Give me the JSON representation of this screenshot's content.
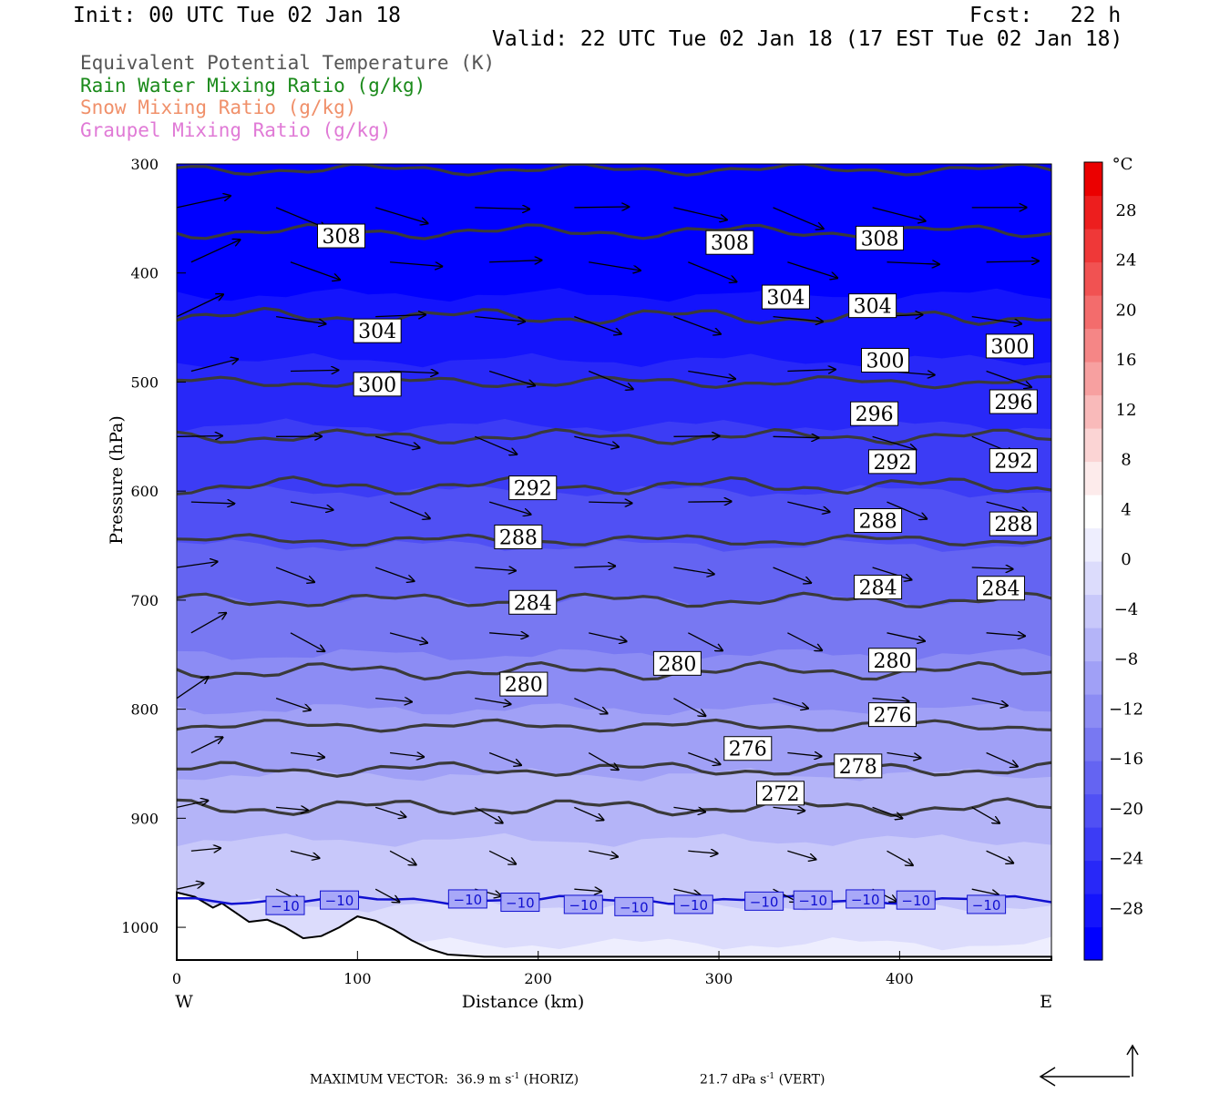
{
  "header": {
    "init": "Init: 00 UTC Tue 02 Jan 18",
    "fcst": "Fcst:   22 h",
    "valid": "Valid: 22 UTC Tue 02 Jan 18 (17 EST Tue 02 Jan 18)",
    "legend": [
      {
        "text": "Equivalent Potential Temperature (K)",
        "color": "#555555"
      },
      {
        "text": "Rain Water Mixing Ratio (g/kg)",
        "color": "#1a8a1a"
      },
      {
        "text": "Snow Mixing Ratio (g/kg)",
        "color": "#f0906a"
      },
      {
        "text": "Graupel Mixing Ratio (g/kg)",
        "color": "#e07ad6"
      }
    ]
  },
  "chart_data": {
    "type": "cross-section",
    "xlabel": "Distance (km)",
    "ylabel": "Pressure (hPa)",
    "xlim": [
      0,
      484
    ],
    "ylim": [
      1030,
      300
    ],
    "x_ticks": [
      "0",
      "100",
      "200",
      "300",
      "400"
    ],
    "y_ticks": [
      "300",
      "400",
      "500",
      "600",
      "700",
      "800",
      "900",
      "1000"
    ],
    "x_end_labels": {
      "left": "W",
      "right": "E"
    },
    "colorbar": {
      "unit": "°C",
      "labels": [
        "28",
        "24",
        "20",
        "16",
        "12",
        "8",
        "4",
        "0",
        "−4",
        "−8",
        "−12",
        "−16",
        "−20",
        "−24",
        "−28"
      ],
      "label_values": [
        28,
        24,
        20,
        16,
        12,
        8,
        4,
        0,
        -4,
        -8,
        -12,
        -16,
        -20,
        -24,
        -28
      ],
      "range": [
        -32,
        32
      ],
      "colors": [
        "#0000ff",
        "#1414fc",
        "#2828f8",
        "#3c3cf5",
        "#5050f4",
        "#6464f2",
        "#7878f2",
        "#8c8cf4",
        "#a0a0f6",
        "#b4b4f8",
        "#c8c8fa",
        "#dcdcfc",
        "#eeeefe",
        "#ffffff",
        "#fdebeb",
        "#fbd4d4",
        "#f9baba",
        "#f7a0a0",
        "#f58686",
        "#f36c6c",
        "#f15252",
        "#ef3838",
        "#ed1e1e",
        "#eb0000"
      ]
    },
    "theta_e_labels": [
      {
        "value": "308",
        "x": 91,
        "p": 366
      },
      {
        "value": "308",
        "x": 306,
        "p": 372
      },
      {
        "value": "308",
        "x": 389,
        "p": 368
      },
      {
        "value": "304",
        "x": 111,
        "p": 453
      },
      {
        "value": "304",
        "x": 337,
        "p": 422
      },
      {
        "value": "304",
        "x": 385,
        "p": 430
      },
      {
        "value": "300",
        "x": 111,
        "p": 502
      },
      {
        "value": "300",
        "x": 392,
        "p": 480
      },
      {
        "value": "300",
        "x": 461,
        "p": 467
      },
      {
        "value": "296",
        "x": 386,
        "p": 529
      },
      {
        "value": "296",
        "x": 463,
        "p": 518
      },
      {
        "value": "292",
        "x": 197,
        "p": 597
      },
      {
        "value": "292",
        "x": 396,
        "p": 573
      },
      {
        "value": "292",
        "x": 463,
        "p": 572
      },
      {
        "value": "288",
        "x": 189,
        "p": 642
      },
      {
        "value": "288",
        "x": 388,
        "p": 627
      },
      {
        "value": "288",
        "x": 463,
        "p": 630
      },
      {
        "value": "284",
        "x": 197,
        "p": 702
      },
      {
        "value": "284",
        "x": 388,
        "p": 688
      },
      {
        "value": "284",
        "x": 456,
        "p": 689
      },
      {
        "value": "280",
        "x": 192,
        "p": 777
      },
      {
        "value": "280",
        "x": 277,
        "p": 758
      },
      {
        "value": "280",
        "x": 396,
        "p": 755
      },
      {
        "value": "276",
        "x": 316,
        "p": 836
      },
      {
        "value": "276",
        "x": 396,
        "p": 805
      },
      {
        "value": "272",
        "x": 334,
        "p": 877
      },
      {
        "value": "278",
        "x": 377,
        "p": 852
      }
    ],
    "temperature_labels": [
      {
        "value": "−10",
        "x": 60,
        "p": 980
      },
      {
        "value": "−10",
        "x": 90,
        "p": 975
      },
      {
        "value": "−10",
        "x": 161,
        "p": 974
      },
      {
        "value": "−10",
        "x": 190,
        "p": 977
      },
      {
        "value": "−10",
        "x": 225,
        "p": 979
      },
      {
        "value": "−10",
        "x": 253,
        "p": 981
      },
      {
        "value": "−10",
        "x": 286,
        "p": 979
      },
      {
        "value": "−10",
        "x": 325,
        "p": 976
      },
      {
        "value": "−10",
        "x": 352,
        "p": 975
      },
      {
        "value": "−10",
        "x": 381,
        "p": 974
      },
      {
        "value": "−10",
        "x": 409,
        "p": 975
      },
      {
        "value": "−10",
        "x": 448,
        "p": 979
      }
    ],
    "footer": {
      "left_prefix": "MAXIMUM VECTOR:  36.9 m s",
      "left_exp": "-1",
      "left_suffix": " (HORIZ)",
      "right_prefix": "21.7 dPa s",
      "right_exp": "-1",
      "right_suffix": " (VERT)"
    }
  }
}
